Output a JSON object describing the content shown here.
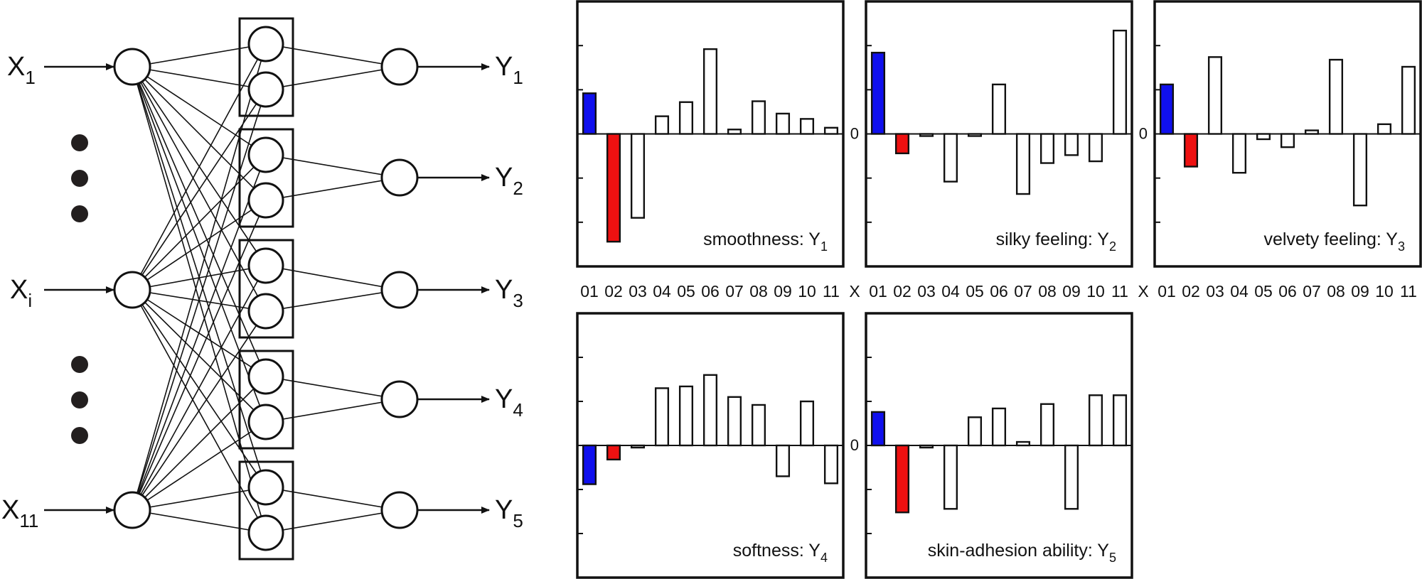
{
  "network": {
    "inputs": [
      {
        "base": "X",
        "sub": "1"
      },
      {
        "base": "X",
        "sub": "i"
      },
      {
        "base": "X",
        "sub": "11"
      }
    ],
    "outputs": [
      {
        "base": "Y",
        "sub": "1"
      },
      {
        "base": "Y",
        "sub": "2"
      },
      {
        "base": "Y",
        "sub": "3"
      },
      {
        "base": "Y",
        "sub": "4"
      },
      {
        "base": "Y",
        "sub": "5"
      }
    ],
    "hidden_groups": 5,
    "hidden_nodes_per_group": 2
  },
  "colors": {
    "positive_highlight": "#1010ee",
    "negative_highlight": "#ee1111",
    "bar_default": "#ffffff",
    "stroke": "#111111"
  },
  "x_axis": {
    "title": "X",
    "categories": [
      "01",
      "02",
      "03",
      "04",
      "05",
      "06",
      "07",
      "08",
      "09",
      "10",
      "11"
    ]
  },
  "chart_data": [
    {
      "type": "bar",
      "title": "smoothness",
      "target": {
        "base": "Y",
        "sub": "1"
      },
      "categories": [
        "01",
        "02",
        "03",
        "04",
        "05",
        "06",
        "07",
        "08",
        "09",
        "10",
        "11"
      ],
      "values": [
        0.46,
        -1.22,
        -0.95,
        0.2,
        0.36,
        0.96,
        0.05,
        0.37,
        0.23,
        0.17,
        0.07
      ],
      "highlight": {
        "01": "positive",
        "02": "negative"
      },
      "zero_label": "",
      "ylim": [
        -1.5,
        1.5
      ],
      "xlabel": "X",
      "ylabel": ""
    },
    {
      "type": "bar",
      "title": "silky feeling",
      "target": {
        "base": "Y",
        "sub": "2"
      },
      "categories": [
        "01",
        "02",
        "03",
        "04",
        "05",
        "06",
        "07",
        "08",
        "09",
        "10",
        "11"
      ],
      "values": [
        0.92,
        -0.22,
        -0.02,
        -0.54,
        -0.01,
        0.56,
        -0.68,
        -0.33,
        -0.24,
        -0.31,
        1.17
      ],
      "highlight": {
        "01": "positive",
        "02": "negative"
      },
      "zero_label": "0",
      "ylim": [
        -1.5,
        1.5
      ],
      "xlabel": "X",
      "ylabel": ""
    },
    {
      "type": "bar",
      "title": "velvety feeling",
      "target": {
        "base": "Y",
        "sub": "3"
      },
      "categories": [
        "01",
        "02",
        "03",
        "04",
        "05",
        "06",
        "07",
        "08",
        "09",
        "10",
        "11"
      ],
      "values": [
        0.56,
        -0.37,
        0.87,
        -0.44,
        -0.06,
        -0.15,
        0.04,
        0.84,
        -0.81,
        0.11,
        0.76
      ],
      "highlight": {
        "01": "positive",
        "02": "negative"
      },
      "zero_label": "0",
      "ylim": [
        -1.5,
        1.5
      ],
      "xlabel": "",
      "ylabel": ""
    },
    {
      "type": "bar",
      "title": "softness",
      "target": {
        "base": "Y",
        "sub": "4"
      },
      "categories": [
        "01",
        "02",
        "03",
        "04",
        "05",
        "06",
        "07",
        "08",
        "09",
        "10",
        "11"
      ],
      "values": [
        -0.44,
        -0.16,
        -0.02,
        0.65,
        0.67,
        0.8,
        0.55,
        0.46,
        -0.35,
        0.5,
        -0.43
      ],
      "highlight": {
        "01": "positive",
        "02": "negative"
      },
      "zero_label": "",
      "ylim": [
        -1.5,
        1.5
      ],
      "xlabel": "",
      "ylabel": ""
    },
    {
      "type": "bar",
      "title": "skin-adhesion ability",
      "target": {
        "base": "Y",
        "sub": "5"
      },
      "categories": [
        "01",
        "02",
        "03",
        "04",
        "05",
        "06",
        "07",
        "08",
        "09",
        "10",
        "11"
      ],
      "values": [
        0.38,
        -0.76,
        -0.02,
        -0.72,
        0.32,
        0.42,
        0.04,
        0.47,
        -0.72,
        0.57,
        0.57
      ],
      "highlight": {
        "01": "positive",
        "02": "negative"
      },
      "zero_label": "0",
      "ylim": [
        -1.5,
        1.5
      ],
      "xlabel": "",
      "ylabel": ""
    }
  ]
}
